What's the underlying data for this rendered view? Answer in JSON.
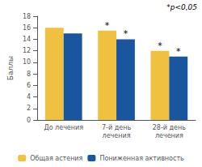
{
  "chart_data": {
    "type": "bar",
    "categories": [
      "До лечения",
      "7-й день\nлечения",
      "28-й день\nлечения"
    ],
    "series": [
      {
        "name": "Общая астения",
        "color": "#F0C040",
        "values": [
          16.0,
          15.5,
          12.0
        ]
      },
      {
        "name": "Пониженная активность",
        "color": "#1A55A0",
        "values": [
          15.0,
          14.0,
          11.0
        ]
      }
    ],
    "ylabel": "Баллы",
    "ylim": [
      0,
      18
    ],
    "yticks": [
      0,
      2,
      4,
      6,
      8,
      10,
      12,
      14,
      16,
      18
    ],
    "grid": false,
    "legend": "bottom",
    "annotations": [
      {
        "text": "*p<0,05"
      },
      {
        "text": "*",
        "series": "Общая астения",
        "category": "7-й день\nлечения"
      },
      {
        "text": "*",
        "series": "Пониженная активность",
        "category": "7-й день\nлечения"
      },
      {
        "text": "*",
        "series": "Общая астения",
        "category": "28-й день\nлечения"
      },
      {
        "text": "*",
        "series": "Пониженная активность",
        "category": "28-й день\nлечения"
      }
    ]
  }
}
